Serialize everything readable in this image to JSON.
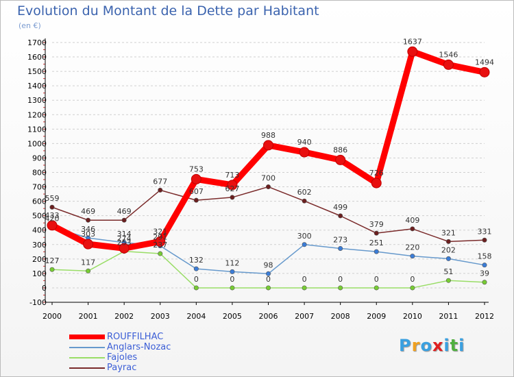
{
  "header": {
    "title": "Evolution du Montant de la Dette par Habitant",
    "unit": "(en €)"
  },
  "chart_data": {
    "type": "line",
    "title": "Evolution du Montant de la Dette par Habitant",
    "ylabel": "(en €)",
    "xlabel": "",
    "categories": [
      "2000",
      "2001",
      "2002",
      "2003",
      "2004",
      "2005",
      "2006",
      "2007",
      "2008",
      "2009",
      "2010",
      "2011",
      "2012"
    ],
    "ylim": [
      -100,
      1700
    ],
    "yticks": [
      -100,
      0,
      100,
      200,
      300,
      400,
      500,
      600,
      700,
      800,
      900,
      1000,
      1100,
      1200,
      1300,
      1400,
      1500,
      1600,
      1700
    ],
    "grid": "horizontal dashed",
    "legend_position": "bottom-left",
    "series": [
      {
        "name": "ROUFFILHAC",
        "color": "#ff0000",
        "marker": "#e81010",
        "values": [
          433,
          303,
          274,
          321,
          753,
          713,
          988,
          940,
          886,
          726,
          1637,
          1546,
          1494
        ]
      },
      {
        "name": "Anglars-Nozac",
        "color": "#6699cc",
        "marker": "#3b7dd8",
        "values": [
          420,
          346,
          314,
          291,
          132,
          112,
          98,
          300,
          273,
          251,
          220,
          202,
          158
        ]
      },
      {
        "name": "Fajoles",
        "color": "#99dd66",
        "marker": "#77cc33",
        "values": [
          127,
          117,
          253,
          237,
          0,
          0,
          0,
          0,
          0,
          0,
          0,
          51,
          39
        ]
      },
      {
        "name": "Payrac",
        "color": "#7a2a2a",
        "marker": "#6b1f1f",
        "values": [
          559,
          469,
          469,
          677,
          607,
          627,
          700,
          602,
          499,
          379,
          409,
          321,
          331
        ]
      }
    ]
  },
  "brand": {
    "letters": [
      "P",
      "r",
      "o",
      "x",
      "i",
      "t",
      "i"
    ],
    "colors": [
      "#3aa0e0",
      "#f0a020",
      "#3aa0e0",
      "#e02020",
      "#3aa0e0",
      "#50b040",
      "#3aa0e0"
    ]
  }
}
